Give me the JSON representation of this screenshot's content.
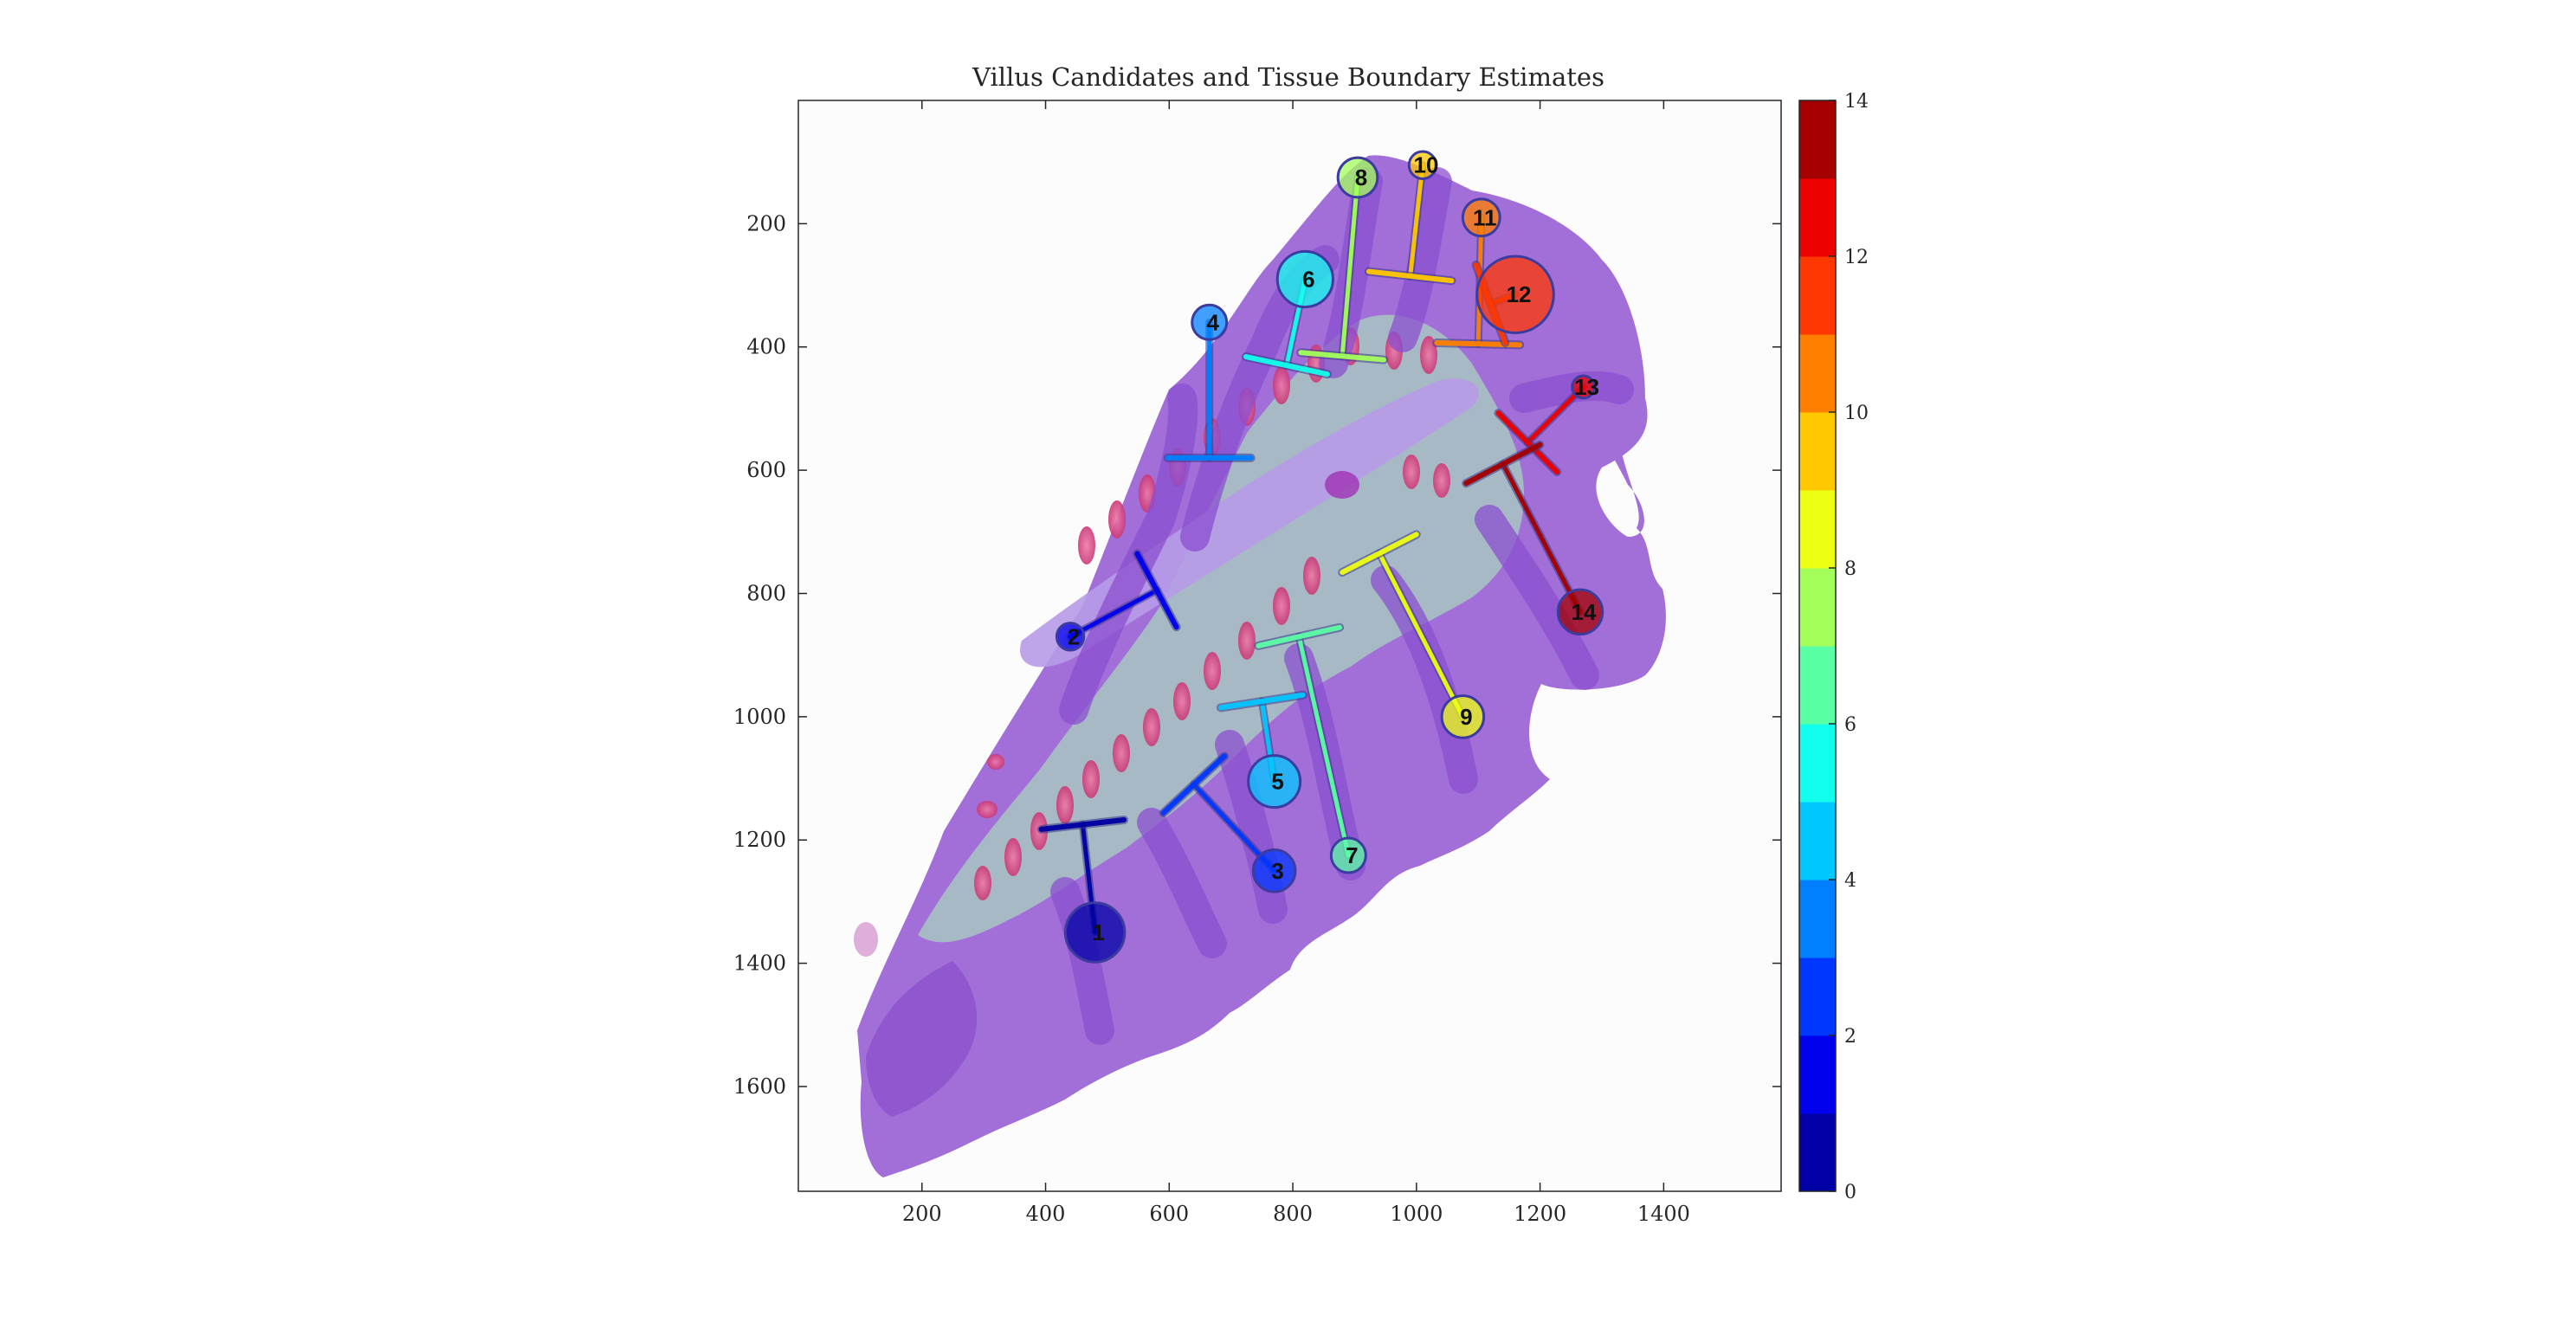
{
  "chart_data": {
    "type": "image",
    "title": "Villus Candidates and Tissue Boundary Estimates",
    "x_ticks": [
      200,
      400,
      600,
      800,
      1000,
      1200,
      1400
    ],
    "y_ticks": [
      200,
      400,
      600,
      800,
      1000,
      1200,
      1400,
      1600
    ],
    "xlim": [
      0,
      1590
    ],
    "ylim": [
      1770,
      0
    ],
    "colorbar": {
      "min": 0,
      "max": 14,
      "ticks": [
        0,
        2,
        4,
        6,
        8,
        10,
        12,
        14
      ],
      "levels": 14,
      "colormap": "jet"
    },
    "villi": [
      {
        "id": 1,
        "label": "1",
        "tip": [
          480,
          1350
        ],
        "base": [
          460,
          1175
        ],
        "radius": 48
      },
      {
        "id": 2,
        "label": "2",
        "tip": [
          440,
          870
        ],
        "base": [
          580,
          795
        ],
        "radius": 22
      },
      {
        "id": 3,
        "label": "3",
        "tip": [
          770,
          1250
        ],
        "base": [
          640,
          1110
        ],
        "radius": 34
      },
      {
        "id": 4,
        "label": "4",
        "tip": [
          665,
          360
        ],
        "base": [
          665,
          580
        ],
        "radius": 28
      },
      {
        "id": 5,
        "label": "5",
        "tip": [
          770,
          1105
        ],
        "base": [
          750,
          975
        ],
        "radius": 42
      },
      {
        "id": 6,
        "label": "6",
        "tip": [
          820,
          290
        ],
        "base": [
          790,
          430
        ],
        "radius": 45
      },
      {
        "id": 7,
        "label": "7",
        "tip": [
          890,
          1225
        ],
        "base": [
          810,
          870
        ],
        "radius": 28
      },
      {
        "id": 8,
        "label": "8",
        "tip": [
          905,
          125
        ],
        "base": [
          880,
          415
        ],
        "radius": 32
      },
      {
        "id": 9,
        "label": "9",
        "tip": [
          1075,
          1000
        ],
        "base": [
          940,
          735
        ],
        "radius": 34
      },
      {
        "id": 10,
        "label": "10",
        "tip": [
          1010,
          105
        ],
        "base": [
          990,
          285
        ],
        "radius": 22
      },
      {
        "id": 11,
        "label": "11",
        "tip": [
          1105,
          190
        ],
        "base": [
          1100,
          395
        ],
        "radius": 30
      },
      {
        "id": 12,
        "label": "12",
        "tip": [
          1160,
          315
        ],
        "base": [
          1120,
          330
        ],
        "radius": 62
      },
      {
        "id": 13,
        "label": "13",
        "tip": [
          1270,
          465
        ],
        "base": [
          1180,
          555
        ],
        "radius": 18
      },
      {
        "id": 14,
        "label": "14",
        "tip": [
          1265,
          830
        ],
        "base": [
          1140,
          590
        ],
        "radius": 36
      }
    ]
  }
}
